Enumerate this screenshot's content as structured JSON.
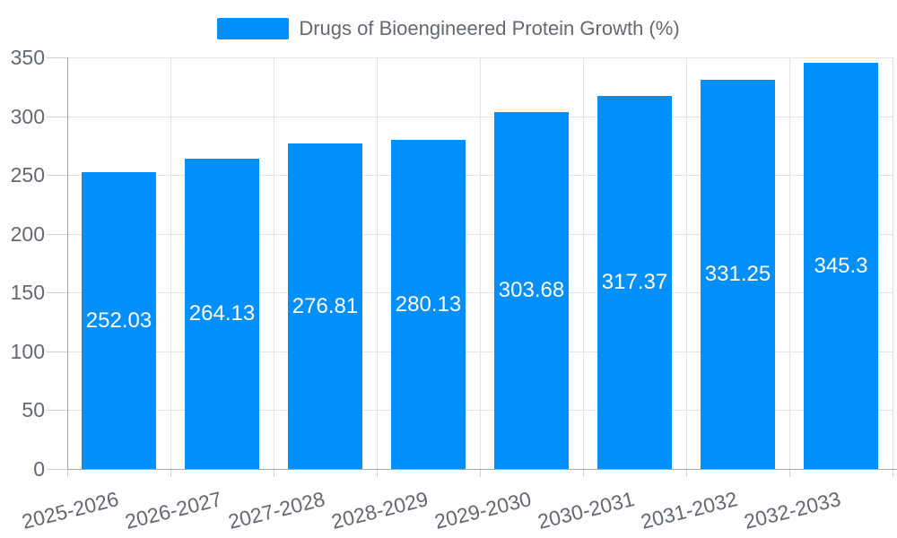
{
  "legend": {
    "label": "Drugs of Bioengineered Protein Growth (%)"
  },
  "chart_data": {
    "type": "bar",
    "title": "Drugs of Bioengineered Protein Growth (%)",
    "categories": [
      "2025-2026",
      "2026-2027",
      "2027-2028",
      "2028-2029",
      "2029-2030",
      "2030-2031",
      "2031-2032",
      "2032-2033"
    ],
    "values": [
      252.03,
      264.13,
      276.81,
      280.13,
      303.68,
      317.37,
      331.25,
      345.3
    ],
    "value_labels": [
      "252.03",
      "264.13",
      "276.81",
      "280.13",
      "303.68",
      "317.37",
      "331.25",
      "345.3"
    ],
    "ylim": [
      0,
      350
    ],
    "yticks": [
      0,
      50,
      100,
      150,
      200,
      250,
      300,
      350
    ],
    "ytick_labels": [
      "0",
      "50",
      "100",
      "150",
      "200",
      "250",
      "300",
      "350"
    ],
    "xlabel": "",
    "ylabel": "",
    "grid": true,
    "legend_position": "top",
    "x_label_rotation_deg": -14,
    "data_label_position": "inside-center"
  },
  "colors": {
    "bar": "#008FFB",
    "grid": "#e4e4e4",
    "axis": "#a8a8a8",
    "tick": "#d0d0d0",
    "text": "#646970",
    "data_label": "#ffffff",
    "background": "#ffffff"
  }
}
